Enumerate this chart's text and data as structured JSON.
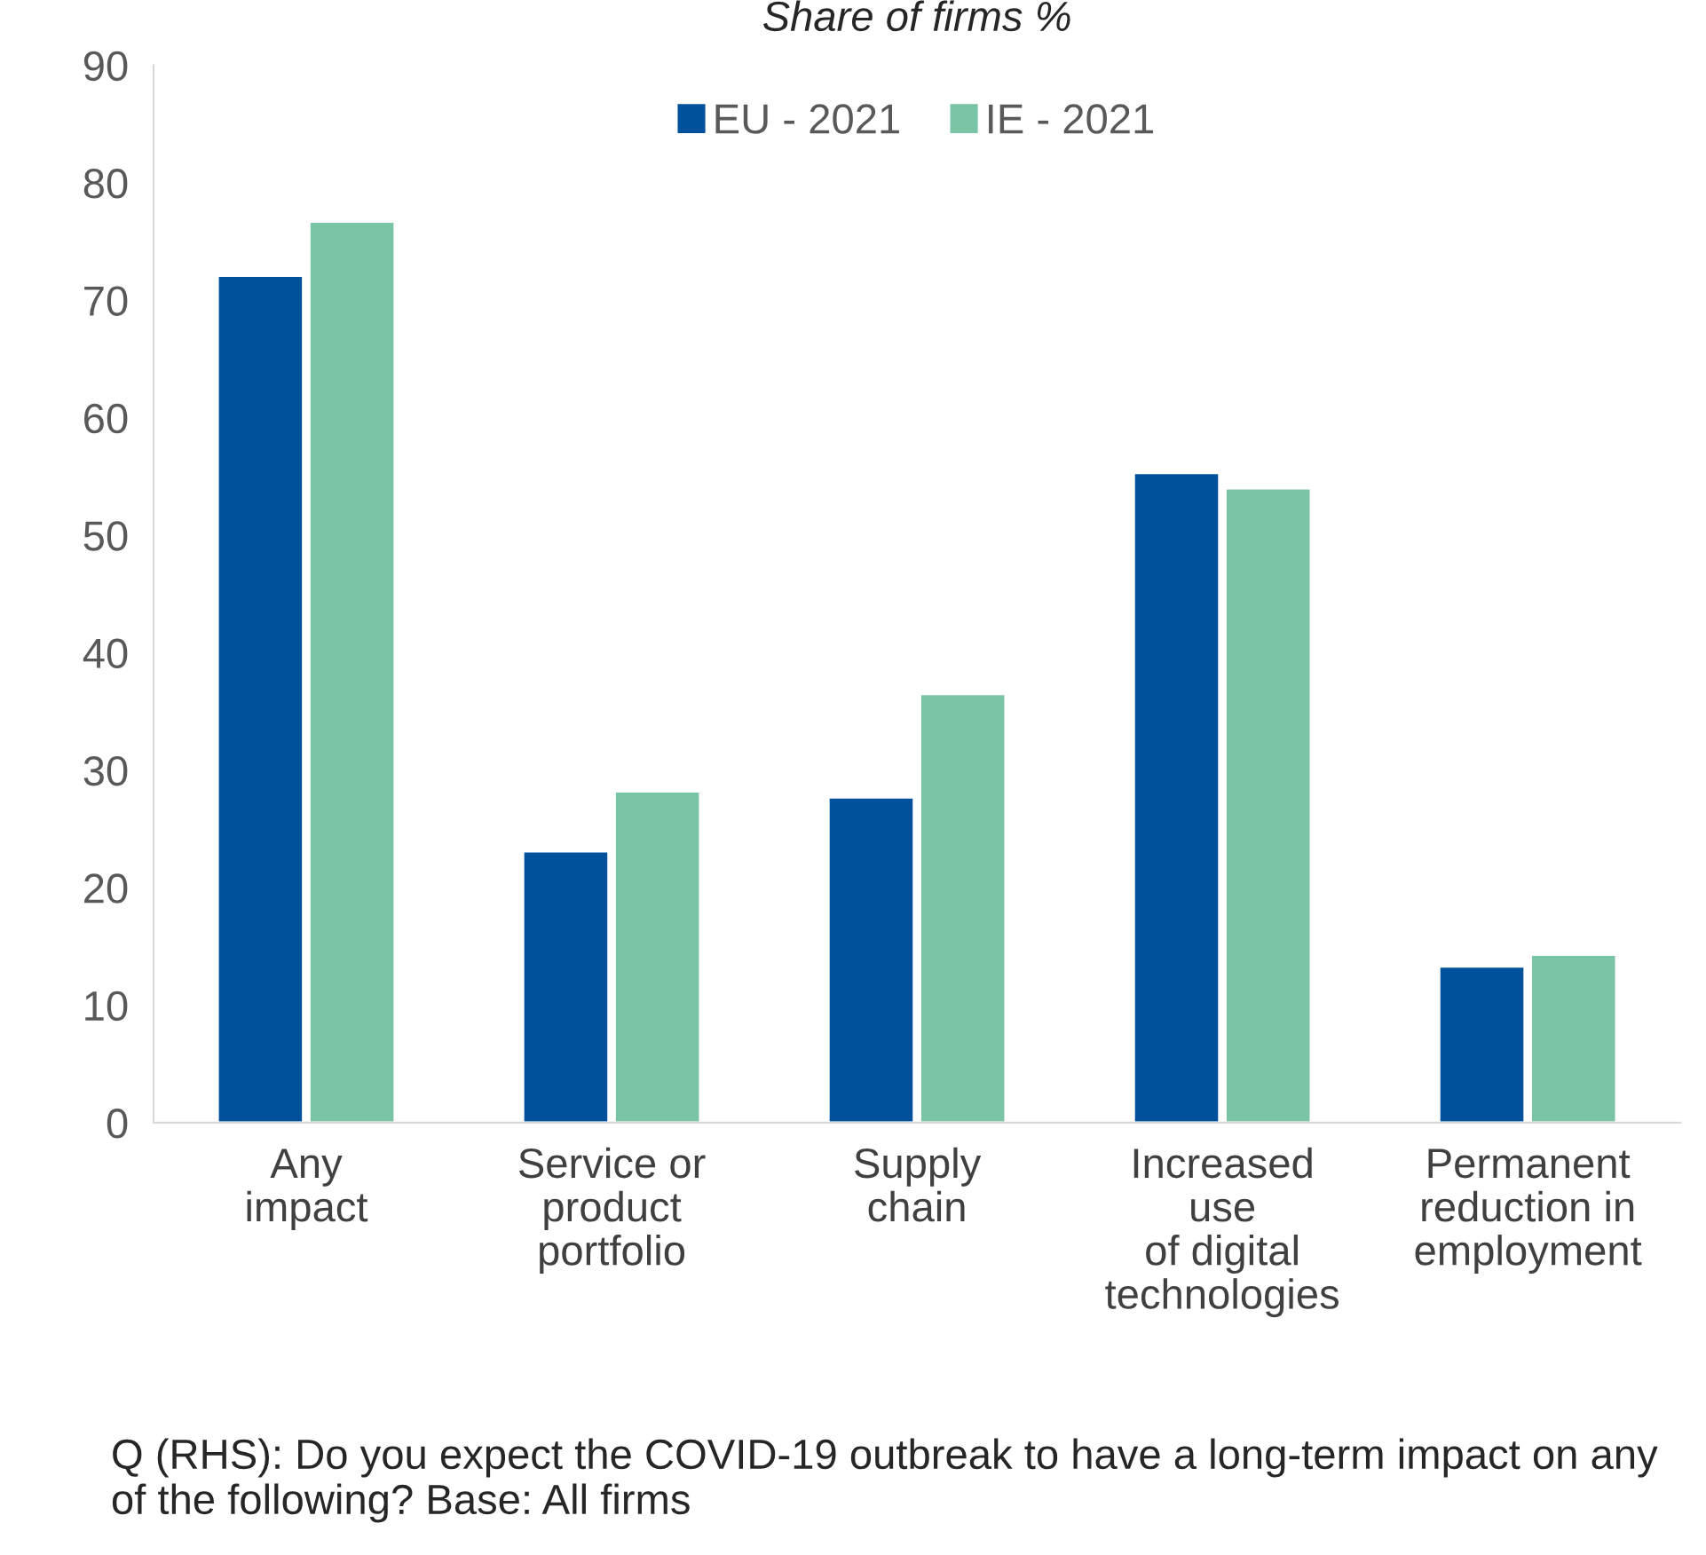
{
  "chart_data": {
    "type": "bar",
    "title": "Share of firms %",
    "categories": [
      "Any\nimpact",
      "Service or\nproduct\nportfolio",
      "Supply\nchain",
      "Increased\nuse\nof digital\ntechnologies",
      "Permanent\nreduction in\nemployment"
    ],
    "series": [
      {
        "name": "EU - 2021",
        "color": "#00519c",
        "values": [
          72.1,
          23.1,
          27.7,
          55.3,
          13.3
        ]
      },
      {
        "name": "IE - 2021",
        "color": "#7ac4a6",
        "values": [
          76.7,
          28.2,
          36.5,
          54.0,
          14.3
        ]
      }
    ],
    "ylim": [
      0,
      90
    ],
    "yticks": [
      0,
      10,
      20,
      30,
      40,
      50,
      60,
      70,
      80,
      90
    ],
    "grid": false,
    "legend": "top",
    "annotations": [
      "Q (RHS): Do you expect the COVID-19 outbreak to have a long-term impact on any of the following? Base: All firms"
    ]
  }
}
